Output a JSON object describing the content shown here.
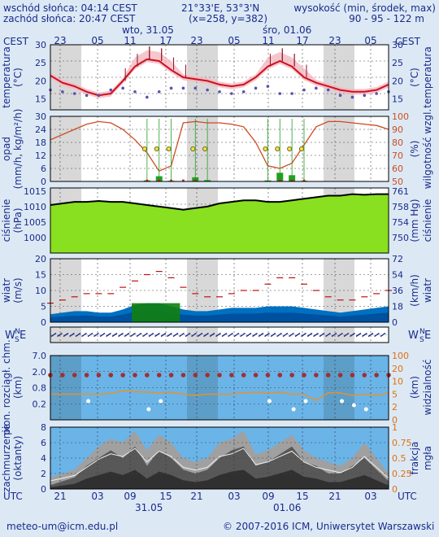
{
  "header": {
    "sunrise": "wschód słońca: 04:14 CEST",
    "sunset": "zachód słońca: 20:47 CEST",
    "coords": "21°33'E, 53°3'N",
    "grid": "(x=258, y=382)",
    "height_label": "wysokość (min, środek, max)",
    "height_values": "90 - 95 - 122 m"
  },
  "day_labels": [
    "wto, 31.05",
    "śro, 01.06"
  ],
  "bottom_day_labels": [
    "31.05",
    "01.06"
  ],
  "tz_top": "CEST",
  "tz_bottom": "UTC",
  "hours_cest": [
    "23",
    "05",
    "11",
    "17",
    "23",
    "05",
    "11",
    "17",
    "23",
    "05"
  ],
  "hours_utc": [
    "21",
    "03",
    "09",
    "15",
    "21",
    "03",
    "09",
    "15",
    "21",
    "03"
  ],
  "footer": {
    "email": "meteo-um@icm.edu.pl",
    "copyright": "© 2007-2016 ICM, Uniwersytet Warszawski"
  },
  "panels": {
    "temperature": {
      "left": "temperatura",
      "left2": "(°C)",
      "right": "temperatura",
      "right2": "(°C)",
      "ticks": [
        "30",
        "25",
        "20",
        "15"
      ]
    },
    "precip": {
      "left": "opad",
      "left2": "(mm/h, kg/m²/h)",
      "right": "wilgotność wzgl.",
      "right2": "(%)",
      "ticks_left": [
        "30",
        "24",
        "18",
        "12",
        "6",
        "0"
      ],
      "ticks_right": [
        "100",
        "90",
        "80",
        "70",
        "60",
        "50"
      ]
    },
    "pressure": {
      "left": "ciśnienie",
      "left2": "(hPa)",
      "right": "ciśnienie",
      "right2": "(mm Hg)",
      "ticks_left": [
        "1015",
        "1010",
        "1005",
        "1000"
      ],
      "ticks_right": [
        "761",
        "758",
        "754",
        "750"
      ]
    },
    "wind": {
      "left": "wiatr",
      "left2": "(m/s)",
      "right": "wiatr",
      "right2": "(km/h)",
      "ticks_left": [
        "20",
        "15",
        "10",
        "5",
        "0"
      ],
      "ticks_right": [
        "72",
        "54",
        "36",
        "18",
        "0"
      ]
    },
    "winddir": {
      "left": "W",
      "left_n": "N",
      "left_s": "S",
      "left_e": "E",
      "right": "W",
      "right_n": "N",
      "right_s": "S",
      "right_e": "E"
    },
    "visibility": {
      "left": "pion. rozciągł. chm.",
      "left2": "(km)",
      "right": "widzialność",
      "right2": "(km)",
      "ticks_left": [
        "7.0",
        "2.0",
        "0.8",
        "0.2"
      ],
      "ticks_right": [
        "100",
        "20",
        "10",
        "5",
        "2",
        "0"
      ]
    },
    "clouds": {
      "left": "zachmurzenie",
      "left2": "(oktanty)",
      "right": "frakcja",
      "right2": "mgła",
      "ticks_left": [
        "8",
        "6",
        "4",
        "2",
        "0"
      ],
      "ticks_right": [
        "1",
        "0.75",
        "0.5",
        "0.25",
        "0"
      ]
    }
  },
  "chart_data": [
    {
      "type": "line",
      "title": "temperatura",
      "ylim": [
        12,
        30
      ],
      "series": [
        {
          "values": [
            21.5,
            19.5,
            18.5,
            17.0,
            16.0,
            16.5,
            20.0,
            24.0,
            26.0,
            25.5,
            23.0,
            21.0,
            20.5,
            20.0,
            19.0,
            18.5,
            19.0,
            21.0,
            24.0,
            25.5,
            24.0,
            21.0,
            19.5,
            18.5,
            17.5,
            17.0,
            17.0,
            17.5,
            19.0
          ]
        },
        {
          "values": [
            17.5,
            17.0,
            16.5,
            16.0,
            16.0,
            17.5,
            18.0,
            17.0,
            15.5,
            17.0,
            18.0,
            18.0,
            18.0,
            17.5,
            17.0,
            16.5,
            17.0,
            18.0,
            18.5,
            16.5,
            16.5,
            17.5,
            18.0,
            17.5,
            16.0,
            15.5,
            16.0,
            16.5,
            17.0
          ]
        }
      ]
    },
    {
      "type": "line",
      "title": "opad / wilgotność",
      "ylim": [
        0,
        30
      ],
      "series": [
        {
          "values": [
            82,
            86,
            90,
            94,
            96,
            95,
            90,
            82,
            72,
            58,
            62,
            95,
            96,
            95,
            95,
            94,
            92,
            80,
            62,
            60,
            64,
            78,
            92,
            96,
            96,
            95,
            94,
            93,
            90
          ]
        },
        {
          "values": [
            0,
            0,
            0,
            0,
            0,
            0,
            0,
            0,
            0.3,
            1.5,
            0.2,
            0,
            1.2,
            0.4,
            0,
            0,
            0,
            0,
            0.3,
            2.5,
            1.8,
            0.2,
            0,
            0,
            0,
            0,
            0,
            0,
            0
          ]
        }
      ]
    },
    {
      "type": "area",
      "title": "ciśnienie",
      "ylim": [
        995,
        1016
      ],
      "series": [
        {
          "values": [
            1010.5,
            1011.0,
            1011.5,
            1011.5,
            1011.8,
            1011.5,
            1011.5,
            1011.0,
            1010.5,
            1010.0,
            1009.5,
            1009.0,
            1009.5,
            1010.0,
            1011.0,
            1011.5,
            1012.0,
            1012.0,
            1011.5,
            1011.5,
            1012.0,
            1012.5,
            1013.0,
            1013.5,
            1013.5,
            1014.0,
            1013.8,
            1014.0,
            1014.0
          ]
        }
      ]
    },
    {
      "type": "area",
      "title": "wiatr",
      "ylim": [
        0,
        20
      ],
      "series": [
        {
          "values": [
            2.5,
            3.0,
            3.5,
            3.5,
            3.0,
            3.0,
            4.0,
            5.5,
            6.0,
            6.0,
            5.0,
            4.0,
            3.5,
            3.5,
            4.0,
            4.5,
            4.5,
            4.5,
            5.0,
            5.0,
            5.0,
            4.5,
            4.0,
            3.5,
            3.0,
            3.5,
            4.0,
            4.5,
            5.0
          ]
        },
        {
          "values": [
            6,
            7,
            8,
            9,
            9,
            9,
            11,
            13,
            15,
            16,
            14,
            11,
            9,
            8,
            8,
            9,
            10,
            10,
            12,
            14,
            14,
            12,
            10,
            8,
            7,
            7,
            8,
            9,
            10
          ]
        }
      ]
    },
    {
      "type": "scatter",
      "title": "widzialność",
      "ylim": [
        0,
        100
      ],
      "series": [
        {
          "values": [
            40,
            40,
            40,
            40,
            40,
            41,
            45,
            44,
            43,
            42,
            43,
            40,
            38,
            40,
            40,
            40,
            42,
            43,
            42,
            43,
            40,
            40,
            30,
            42,
            42,
            38,
            40,
            38,
            42
          ]
        }
      ]
    },
    {
      "type": "area",
      "title": "zachmurzenie",
      "ylim": [
        0,
        8
      ],
      "series": [
        {
          "values": [
            1.5,
            2.0,
            2.5,
            4.0,
            5.5,
            6.5,
            6.0,
            7.5,
            5.0,
            7.0,
            6.0,
            4.0,
            3.5,
            4.0,
            6.0,
            6.5,
            7.5,
            4.5,
            5.0,
            6.0,
            7.0,
            5.0,
            4.0,
            3.5,
            3.0,
            4.0,
            6.0,
            4.0,
            2.0
          ]
        },
        {
          "values": [
            0.5,
            1.0,
            1.5,
            3.0,
            4.0,
            5.0,
            4.0,
            5.5,
            3.0,
            5.0,
            4.0,
            2.5,
            2.0,
            2.5,
            4.0,
            5.0,
            5.5,
            3.0,
            3.5,
            4.5,
            5.5,
            3.5,
            3.0,
            2.0,
            2.0,
            3.0,
            4.0,
            2.5,
            1.0
          ]
        }
      ]
    }
  ]
}
